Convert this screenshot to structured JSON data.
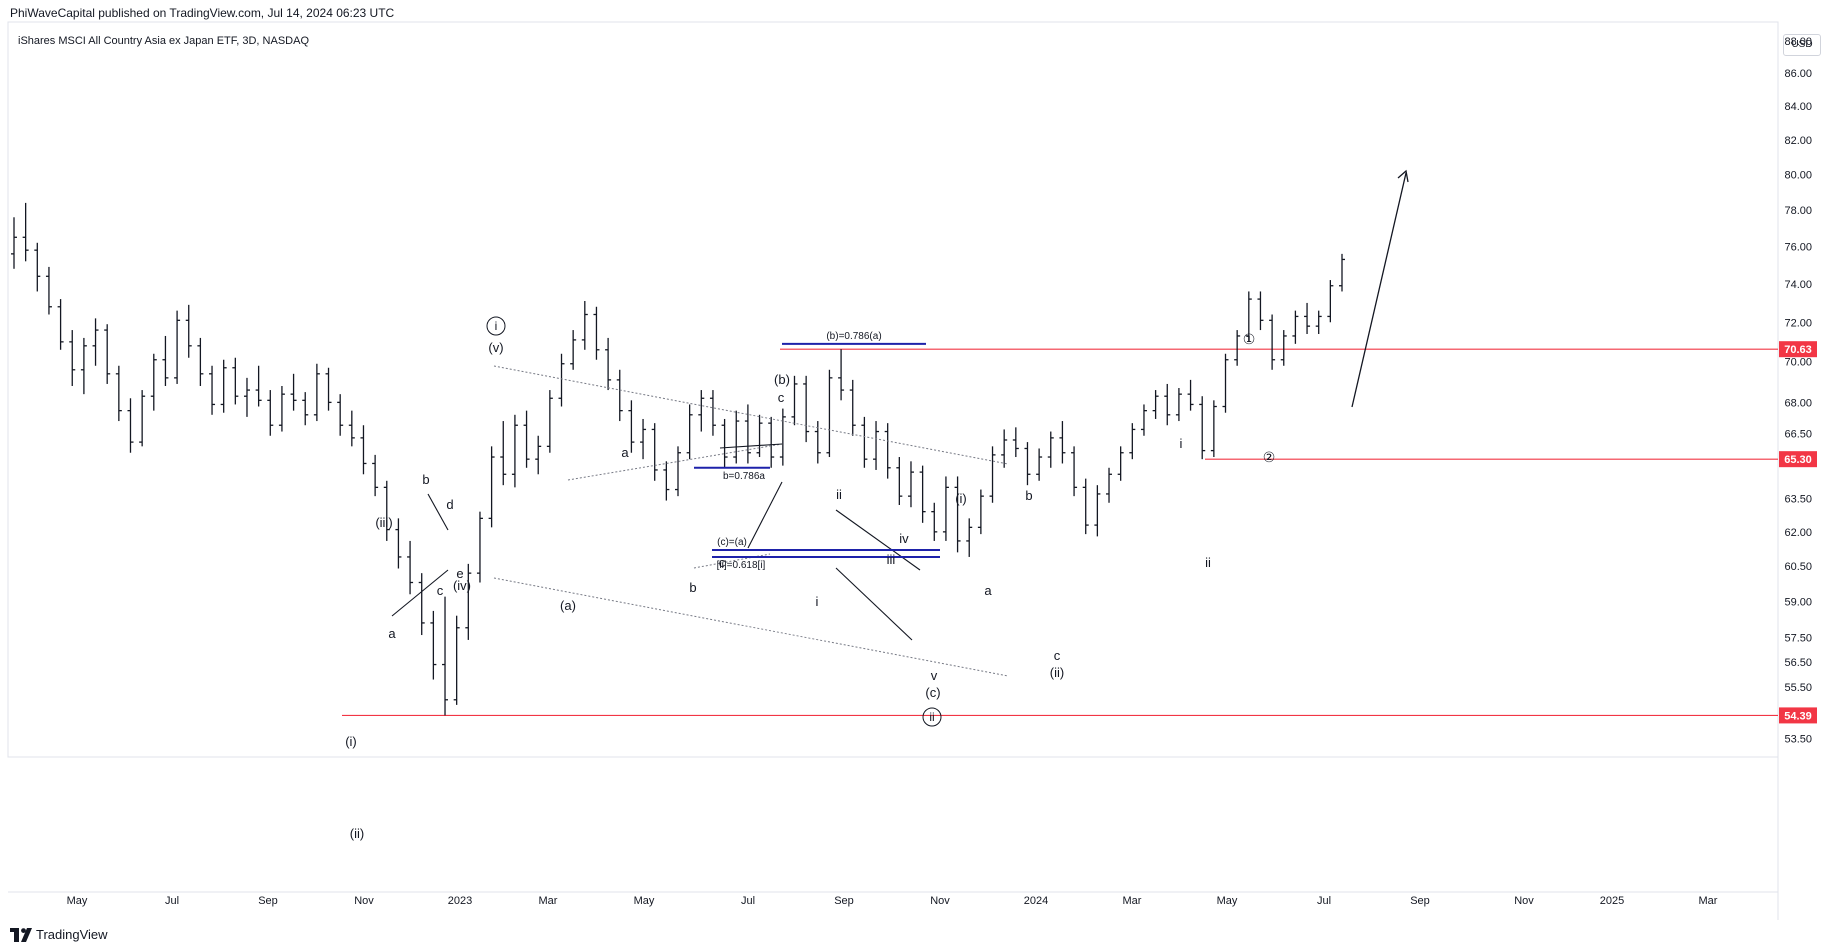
{
  "header": {
    "published_by": "PhiWaveCapital published on TradingView.com, Jul 14, 2024 06:23 UTC",
    "symbol_title": "iShares MSCI All Country Asia ex Japan ETF, 3D, NASDAQ",
    "currency": "USD"
  },
  "footer": {
    "brand": "TradingView"
  },
  "colors": {
    "bars": "#131722",
    "horizontal_level": "#f23645",
    "fib_line": "#1e22aa",
    "grid_axis": "#e0e3eb",
    "channel": "#787b86"
  },
  "chart_data": {
    "type": "ohlc",
    "x_ticks": [
      "May",
      "Jul",
      "Sep",
      "Nov",
      "2023",
      "Mar",
      "May",
      "Jul",
      "Sep",
      "Nov",
      "2024",
      "Mar",
      "May",
      "Jul",
      "Sep",
      "Nov",
      "2025",
      "Mar"
    ],
    "y_ticks": [
      53.5,
      54.5,
      55.5,
      56.5,
      57.5,
      59.0,
      60.5,
      62.0,
      63.5,
      65.5,
      66.5,
      68.0,
      70.0,
      72.0,
      74.0,
      76.0,
      78.0,
      80.0,
      82.0,
      84.0,
      86.0,
      88.0
    ],
    "y_scale": "log",
    "price_levels": [
      {
        "label": "70.63",
        "value": 70.63
      },
      {
        "label": "65.30",
        "value": 65.3
      },
      {
        "label": "54.39",
        "value": 54.39
      }
    ],
    "fib_annotations": [
      {
        "label": "(b)=0.786(a)",
        "value": 70.9
      },
      {
        "label": "b=0.786a",
        "value": 64.9
      },
      {
        "label": "(c)=(a)",
        "value": 61.2
      },
      {
        "label": "[ii]=0.618[i]",
        "value": 60.9
      }
    ],
    "wave_labels": [
      "(i)",
      "(ii)",
      "a",
      "b",
      "c",
      "d",
      "e",
      "(iii)",
      "(iv)",
      "ⓘ",
      "(v)",
      "(a)",
      "a",
      "b",
      "c",
      "(b)",
      "i",
      "ii",
      "iii",
      "iv",
      "v",
      "(c)",
      "ⓘⓘ",
      "(i)",
      "a",
      "b",
      "c",
      "(ii)",
      "i",
      "ii",
      "①",
      "②"
    ],
    "bars": [
      [
        75.6,
        77.6,
        74.8,
        76.5
      ],
      [
        76.5,
        78.4,
        75.2,
        75.8
      ],
      [
        75.8,
        76.2,
        73.6,
        74.4
      ],
      [
        74.4,
        74.9,
        72.4,
        72.8
      ],
      [
        72.8,
        73.2,
        70.6,
        71.0
      ],
      [
        71.0,
        71.6,
        68.8,
        69.6
      ],
      [
        69.6,
        71.2,
        68.4,
        70.8
      ],
      [
        70.8,
        72.2,
        69.8,
        71.6
      ],
      [
        71.6,
        71.9,
        68.9,
        69.4
      ],
      [
        69.4,
        69.8,
        67.1,
        67.6
      ],
      [
        67.6,
        68.2,
        65.6,
        66.1
      ],
      [
        66.1,
        68.6,
        65.9,
        68.3
      ],
      [
        68.3,
        70.4,
        67.6,
        70.1
      ],
      [
        70.1,
        71.3,
        68.8,
        69.2
      ],
      [
        69.2,
        72.6,
        68.9,
        72.1
      ],
      [
        72.1,
        72.9,
        70.2,
        70.8
      ],
      [
        70.8,
        71.2,
        68.8,
        69.4
      ],
      [
        69.4,
        69.8,
        67.4,
        67.9
      ],
      [
        67.9,
        70.1,
        67.5,
        69.7
      ],
      [
        69.7,
        70.2,
        67.9,
        68.3
      ],
      [
        68.3,
        69.2,
        67.3,
        68.6
      ],
      [
        68.6,
        69.8,
        67.8,
        68.1
      ],
      [
        68.1,
        68.6,
        66.4,
        66.9
      ],
      [
        66.9,
        68.8,
        66.6,
        68.4
      ],
      [
        68.4,
        69.4,
        67.6,
        68.1
      ],
      [
        68.1,
        68.5,
        66.9,
        67.4
      ],
      [
        67.4,
        69.9,
        67.1,
        69.4
      ],
      [
        69.4,
        69.7,
        67.6,
        68.0
      ],
      [
        68.0,
        68.4,
        66.4,
        66.9
      ],
      [
        66.9,
        67.6,
        65.9,
        66.3
      ],
      [
        66.3,
        66.9,
        64.6,
        65.1
      ],
      [
        65.1,
        65.5,
        63.6,
        64.0
      ],
      [
        64.0,
        64.3,
        61.6,
        62.1
      ],
      [
        62.1,
        62.6,
        60.4,
        60.9
      ],
      [
        60.9,
        61.6,
        59.3,
        59.8
      ],
      [
        59.8,
        60.2,
        57.6,
        58.1
      ],
      [
        58.1,
        58.6,
        55.8,
        56.4
      ],
      [
        56.4,
        59.2,
        54.39,
        55.0
      ],
      [
        55.0,
        58.4,
        54.8,
        57.9
      ],
      [
        57.9,
        60.6,
        57.4,
        60.2
      ],
      [
        60.2,
        62.9,
        59.8,
        62.6
      ],
      [
        62.6,
        65.9,
        62.2,
        65.4
      ],
      [
        65.4,
        67.1,
        64.1,
        64.6
      ],
      [
        64.6,
        67.4,
        64.0,
        66.9
      ],
      [
        66.9,
        67.6,
        64.9,
        65.3
      ],
      [
        65.3,
        66.4,
        64.6,
        65.9
      ],
      [
        65.9,
        68.6,
        65.6,
        68.2
      ],
      [
        68.2,
        70.4,
        67.8,
        69.9
      ],
      [
        69.9,
        71.6,
        69.6,
        71.1
      ],
      [
        71.1,
        73.1,
        70.6,
        72.4
      ],
      [
        72.4,
        72.8,
        70.1,
        70.6
      ],
      [
        70.6,
        71.2,
        68.6,
        69.1
      ],
      [
        69.1,
        69.6,
        67.1,
        67.6
      ],
      [
        67.6,
        68.1,
        65.6,
        66.1
      ],
      [
        66.1,
        67.2,
        65.3,
        66.7
      ],
      [
        66.7,
        67.0,
        64.3,
        64.8
      ],
      [
        64.8,
        65.2,
        63.4,
        63.9
      ],
      [
        63.9,
        65.9,
        63.6,
        65.6
      ],
      [
        65.6,
        67.9,
        65.3,
        67.4
      ],
      [
        67.4,
        68.6,
        66.6,
        68.2
      ],
      [
        68.2,
        68.6,
        66.4,
        66.9
      ],
      [
        66.9,
        67.2,
        64.9,
        65.4
      ],
      [
        65.4,
        67.6,
        65.1,
        67.1
      ],
      [
        67.1,
        67.9,
        65.1,
        65.6
      ],
      [
        65.6,
        67.4,
        65.4,
        67.0
      ],
      [
        67.0,
        67.3,
        64.9,
        65.4
      ],
      [
        65.4,
        67.7,
        65.0,
        67.3
      ],
      [
        67.3,
        69.3,
        66.9,
        68.9
      ],
      [
        68.9,
        69.3,
        66.1,
        66.6
      ],
      [
        66.6,
        67.1,
        65.1,
        65.6
      ],
      [
        65.6,
        69.6,
        65.4,
        69.2
      ],
      [
        69.2,
        70.63,
        68.1,
        68.6
      ],
      [
        68.6,
        69.1,
        66.4,
        66.9
      ],
      [
        66.9,
        67.3,
        64.9,
        65.3
      ],
      [
        65.3,
        67.1,
        64.8,
        66.6
      ],
      [
        66.6,
        67.0,
        64.4,
        64.9
      ],
      [
        64.9,
        65.4,
        63.2,
        63.6
      ],
      [
        63.6,
        65.2,
        63.1,
        64.7
      ],
      [
        64.7,
        65.0,
        62.4,
        62.9
      ],
      [
        62.9,
        63.3,
        61.6,
        62.0
      ],
      [
        62.0,
        64.5,
        61.6,
        64.0
      ],
      [
        64.0,
        64.5,
        61.1,
        61.6
      ],
      [
        61.6,
        62.6,
        60.9,
        62.2
      ],
      [
        62.2,
        63.9,
        61.9,
        63.6
      ],
      [
        63.6,
        65.9,
        63.3,
        65.5
      ],
      [
        65.5,
        66.7,
        64.9,
        66.2
      ],
      [
        66.2,
        66.8,
        65.4,
        65.8
      ],
      [
        65.8,
        66.1,
        64.1,
        64.6
      ],
      [
        64.6,
        65.8,
        64.3,
        65.4
      ],
      [
        65.4,
        66.6,
        64.9,
        66.3
      ],
      [
        66.3,
        67.1,
        65.1,
        65.6
      ],
      [
        65.6,
        65.9,
        63.6,
        64.0
      ],
      [
        64.0,
        64.4,
        61.9,
        62.3
      ],
      [
        62.3,
        64.1,
        61.8,
        63.7
      ],
      [
        63.7,
        64.9,
        63.3,
        64.6
      ],
      [
        64.6,
        65.9,
        64.3,
        65.6
      ],
      [
        65.6,
        67.0,
        65.3,
        66.7
      ],
      [
        66.7,
        67.9,
        66.4,
        67.6
      ],
      [
        67.6,
        68.6,
        67.2,
        68.3
      ],
      [
        68.3,
        68.9,
        66.9,
        67.4
      ],
      [
        67.4,
        68.7,
        67.1,
        68.4
      ],
      [
        68.4,
        69.1,
        67.6,
        67.9
      ],
      [
        67.9,
        68.3,
        65.3,
        65.7
      ],
      [
        65.7,
        68.1,
        65.4,
        67.8
      ],
      [
        67.8,
        70.4,
        67.5,
        70.1
      ],
      [
        70.1,
        71.6,
        69.8,
        71.3
      ],
      [
        71.3,
        73.6,
        71.0,
        73.2
      ],
      [
        73.2,
        73.6,
        71.6,
        72.1
      ],
      [
        72.1,
        72.4,
        69.6,
        70.1
      ],
      [
        70.1,
        71.6,
        69.8,
        71.3
      ],
      [
        71.3,
        72.6,
        70.9,
        72.3
      ],
      [
        72.3,
        73.0,
        71.4,
        71.8
      ],
      [
        71.8,
        72.6,
        71.4,
        72.3
      ],
      [
        72.3,
        74.2,
        72.0,
        73.9
      ],
      [
        73.9,
        75.6,
        73.6,
        75.3
      ]
    ]
  }
}
